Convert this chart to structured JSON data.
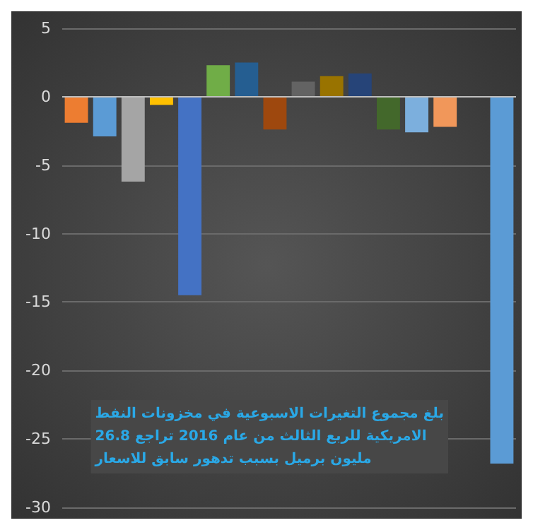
{
  "chart_data": {
    "type": "bar",
    "categories": [
      null,
      null,
      null,
      null,
      null,
      null,
      null,
      null,
      null,
      null,
      null,
      null,
      null,
      null,
      null,
      null
    ],
    "values": [
      -1.9,
      -2.9,
      -6.2,
      -0.6,
      -14.5,
      2.3,
      2.5,
      -2.4,
      1.1,
      1.5,
      1.7,
      -2.4,
      -2.6,
      -2.2,
      null,
      -26.8
    ],
    "colors": [
      "#ed7d31",
      "#5b9bd5",
      "#a5a5a5",
      "#ffc000",
      "#4472c4",
      "#70ad47",
      "#255e91",
      "#9e480e",
      "#636363",
      "#997300",
      "#264478",
      "#43682b",
      "#7cafdd",
      "#f1975a",
      "#5b9bd5",
      "#5b9bd5"
    ],
    "ylim": [
      -30,
      5
    ],
    "yticks": [
      -30,
      -25,
      -20,
      -15,
      -10,
      -5,
      0,
      5
    ],
    "grid": "y",
    "annotations": [
      "بلغ مجموع التغيرات الاسبوعية في مخزونات النفط\nالامريكية للربع الثالث من عام 2016 تراجع 26.8\nمليون برميل بسبب تدهور سابق للاسعار"
    ]
  }
}
